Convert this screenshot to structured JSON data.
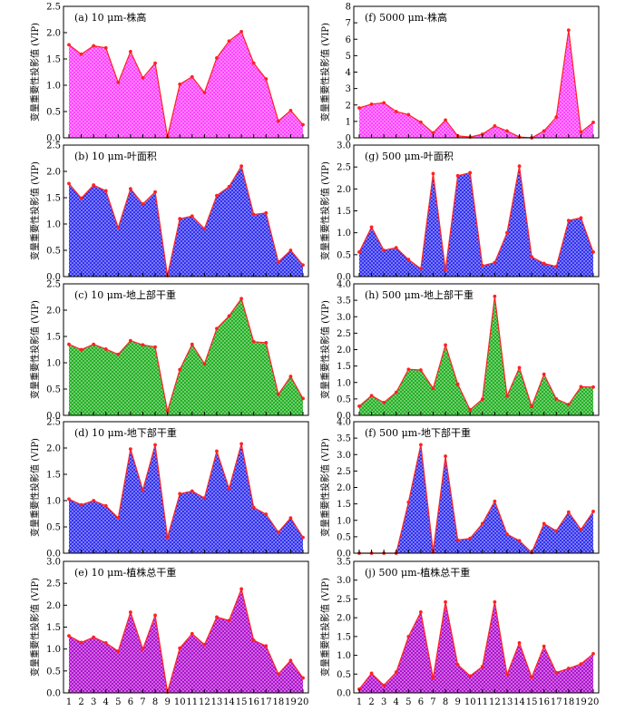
{
  "chart_data": [
    {
      "id": "a",
      "column": 0,
      "row": 0,
      "type": "area",
      "title": "(a) 10 μm-株高",
      "ylabel": "变量重要性投影值 (VIP)",
      "ylim": [
        0,
        2.5
      ],
      "yticks": [
        0,
        0.5,
        1.0,
        1.5,
        2.0,
        2.5
      ],
      "x": [
        1,
        2,
        3,
        4,
        5,
        6,
        7,
        8,
        9,
        10,
        11,
        12,
        13,
        14,
        15,
        16,
        17,
        18,
        19,
        20
      ],
      "values": [
        1.77,
        1.59,
        1.75,
        1.71,
        1.05,
        1.64,
        1.14,
        1.42,
        0.02,
        1.02,
        1.16,
        0.86,
        1.52,
        1.84,
        2.02,
        1.42,
        1.12,
        0.32,
        0.52,
        0.25
      ],
      "fill": "#ff33ff",
      "pattern": "crosshatch"
    },
    {
      "id": "b",
      "column": 0,
      "row": 1,
      "type": "area",
      "title": "(b) 10 μm-叶面积",
      "ylabel": "变量重要性投影值 (VIP)",
      "ylim": [
        0,
        2.5
      ],
      "yticks": [
        0,
        0.5,
        1.0,
        1.5,
        2.0,
        2.5
      ],
      "x": [
        1,
        2,
        3,
        4,
        5,
        6,
        7,
        8,
        9,
        10,
        11,
        12,
        13,
        14,
        15,
        16,
        17,
        18,
        19,
        20
      ],
      "values": [
        1.77,
        1.49,
        1.74,
        1.63,
        0.93,
        1.67,
        1.38,
        1.61,
        0.02,
        1.1,
        1.15,
        0.91,
        1.54,
        1.71,
        2.1,
        1.18,
        1.21,
        0.28,
        0.5,
        0.22
      ],
      "fill": "#2222ee",
      "pattern": "crosshatch"
    },
    {
      "id": "c",
      "column": 0,
      "row": 2,
      "type": "area",
      "title": "(c) 10 μm-地上部干重",
      "ylabel": "变量重要性投影值 (VIP)",
      "ylim": [
        0,
        2.5
      ],
      "yticks": [
        0,
        0.5,
        1.0,
        1.5,
        2.0,
        2.5
      ],
      "x": [
        1,
        2,
        3,
        4,
        5,
        6,
        7,
        8,
        9,
        10,
        11,
        12,
        13,
        14,
        15,
        16,
        17,
        18,
        19,
        20
      ],
      "values": [
        1.35,
        1.25,
        1.35,
        1.26,
        1.16,
        1.42,
        1.34,
        1.3,
        0.08,
        0.87,
        1.35,
        0.98,
        1.65,
        1.89,
        2.22,
        1.4,
        1.38,
        0.4,
        0.74,
        0.32
      ],
      "fill": "#11aa11",
      "pattern": "crosshatch"
    },
    {
      "id": "d",
      "column": 0,
      "row": 3,
      "type": "area",
      "title": "(d) 10 μm-地下部干重",
      "ylabel": "变量重要性投影值 (VIP)",
      "ylim": [
        0,
        2.5
      ],
      "yticks": [
        0,
        0.5,
        1.0,
        1.5,
        2.0,
        2.5
      ],
      "x": [
        1,
        2,
        3,
        4,
        5,
        6,
        7,
        8,
        9,
        10,
        11,
        12,
        13,
        14,
        15,
        16,
        17,
        18,
        19,
        20
      ],
      "values": [
        1.03,
        0.92,
        1.0,
        0.9,
        0.67,
        1.98,
        1.2,
        2.06,
        0.3,
        1.13,
        1.18,
        1.05,
        1.94,
        1.23,
        2.08,
        0.87,
        0.74,
        0.4,
        0.67,
        0.3
      ],
      "fill": "#2222ee",
      "pattern": "crosshatch"
    },
    {
      "id": "e",
      "column": 0,
      "row": 4,
      "type": "area",
      "title": "(e) 10 μm-植株总干重",
      "ylabel": "变量重要性投影值 (VIP)",
      "ylim": [
        0,
        3.0
      ],
      "yticks": [
        0,
        0.5,
        1.0,
        1.5,
        2.0,
        2.5,
        3.0
      ],
      "x": [
        1,
        2,
        3,
        4,
        5,
        6,
        7,
        8,
        9,
        10,
        11,
        12,
        13,
        14,
        15,
        16,
        17,
        18,
        19,
        20
      ],
      "values": [
        1.3,
        1.15,
        1.27,
        1.14,
        0.95,
        1.84,
        1.0,
        1.77,
        0.02,
        1.02,
        1.35,
        1.1,
        1.73,
        1.65,
        2.37,
        1.2,
        1.07,
        0.43,
        0.74,
        0.34
      ],
      "fill": "#aa00cc",
      "pattern": "crosshatch"
    },
    {
      "id": "f",
      "column": 1,
      "row": 0,
      "type": "area",
      "title": "(f) 5000 μm-株高",
      "ylabel": "变量重要性投影值 (VIP)",
      "ylim": [
        0,
        8
      ],
      "yticks": [
        0,
        1,
        2,
        3,
        4,
        5,
        6,
        7,
        8
      ],
      "x": [
        1,
        2,
        3,
        4,
        5,
        6,
        7,
        8,
        9,
        10,
        11,
        12,
        13,
        14,
        15,
        16,
        17,
        18,
        19,
        20
      ],
      "values": [
        1.82,
        2.05,
        2.13,
        1.6,
        1.41,
        0.95,
        0.3,
        1.08,
        0.12,
        0.05,
        0.22,
        0.72,
        0.42,
        0.05,
        0.0,
        0.42,
        1.26,
        6.55,
        0.35,
        0.94
      ],
      "fill": "#ff33ff",
      "pattern": "crosshatch"
    },
    {
      "id": "g",
      "column": 1,
      "row": 1,
      "type": "area",
      "title": "(g) 500 μm-叶面积",
      "ylabel": "变量重要性投影值 (VIP)",
      "ylim": [
        0,
        3.0
      ],
      "yticks": [
        0,
        0.5,
        1.0,
        1.5,
        2.0,
        2.5,
        3.0
      ],
      "x": [
        1,
        2,
        3,
        4,
        5,
        6,
        7,
        8,
        9,
        10,
        11,
        12,
        13,
        14,
        15,
        16,
        17,
        18,
        19,
        20
      ],
      "values": [
        0.56,
        1.13,
        0.6,
        0.66,
        0.39,
        0.18,
        2.35,
        0.15,
        2.3,
        2.37,
        0.25,
        0.32,
        1.0,
        2.52,
        0.45,
        0.3,
        0.23,
        1.28,
        1.34,
        0.56
      ],
      "fill": "#2222ee",
      "pattern": "crosshatch"
    },
    {
      "id": "h",
      "column": 1,
      "row": 2,
      "type": "area",
      "title": "(h) 500 μm-地上部干重",
      "ylabel": "变量重要性投影值 (VIP)",
      "ylim": [
        0,
        4.0
      ],
      "yticks": [
        0,
        0.5,
        1.0,
        1.5,
        2.0,
        2.5,
        3.0,
        3.5,
        4.0
      ],
      "x": [
        1,
        2,
        3,
        4,
        5,
        6,
        7,
        8,
        9,
        10,
        11,
        12,
        13,
        14,
        15,
        16,
        17,
        18,
        19,
        20
      ],
      "values": [
        0.28,
        0.6,
        0.39,
        0.7,
        1.4,
        1.38,
        0.82,
        2.14,
        0.95,
        0.17,
        0.49,
        3.62,
        0.59,
        1.45,
        0.27,
        1.25,
        0.5,
        0.33,
        0.87,
        0.86
      ],
      "fill": "#11aa11",
      "pattern": "crosshatch"
    },
    {
      "id": "i",
      "column": 1,
      "row": 3,
      "type": "area",
      "title": "(f) 500 μm-地下部干重",
      "ylabel": "变量重要性投影值 (VIP)",
      "ylim": [
        0,
        4.0
      ],
      "yticks": [
        0,
        0.5,
        1.0,
        1.5,
        2.0,
        2.5,
        3.0,
        3.5,
        4.0
      ],
      "x": [
        1,
        2,
        3,
        4,
        5,
        6,
        7,
        8,
        9,
        10,
        11,
        12,
        13,
        14,
        15,
        16,
        17,
        18,
        19,
        20
      ],
      "values": [
        0.0,
        0.0,
        0.0,
        0.0,
        1.55,
        3.3,
        0.05,
        2.95,
        0.4,
        0.45,
        0.9,
        1.58,
        0.58,
        0.38,
        0.02,
        0.9,
        0.68,
        1.25,
        0.72,
        1.27
      ],
      "fill": "#2222ee",
      "pattern": "crosshatch"
    },
    {
      "id": "j",
      "column": 1,
      "row": 4,
      "type": "area",
      "title": "(j) 500 μm-植株总干重",
      "ylabel": "变量重要性投影值 (VIP)",
      "ylim": [
        0,
        3.5
      ],
      "yticks": [
        0,
        0.5,
        1.0,
        1.5,
        2.0,
        2.5,
        3.0,
        3.5
      ],
      "x": [
        1,
        2,
        3,
        4,
        5,
        6,
        7,
        8,
        9,
        10,
        11,
        12,
        13,
        14,
        15,
        16,
        17,
        18,
        19,
        20
      ],
      "values": [
        0.1,
        0.52,
        0.2,
        0.55,
        1.5,
        2.15,
        0.39,
        2.42,
        0.75,
        0.45,
        0.7,
        2.42,
        0.49,
        1.33,
        0.41,
        1.24,
        0.54,
        0.65,
        0.77,
        1.04
      ],
      "fill": "#aa00cc",
      "pattern": "crosshatch"
    }
  ],
  "style": {
    "line_color": "#ff2222",
    "marker_color": "#ff2222",
    "hatch_line_color": "#ffffff"
  }
}
